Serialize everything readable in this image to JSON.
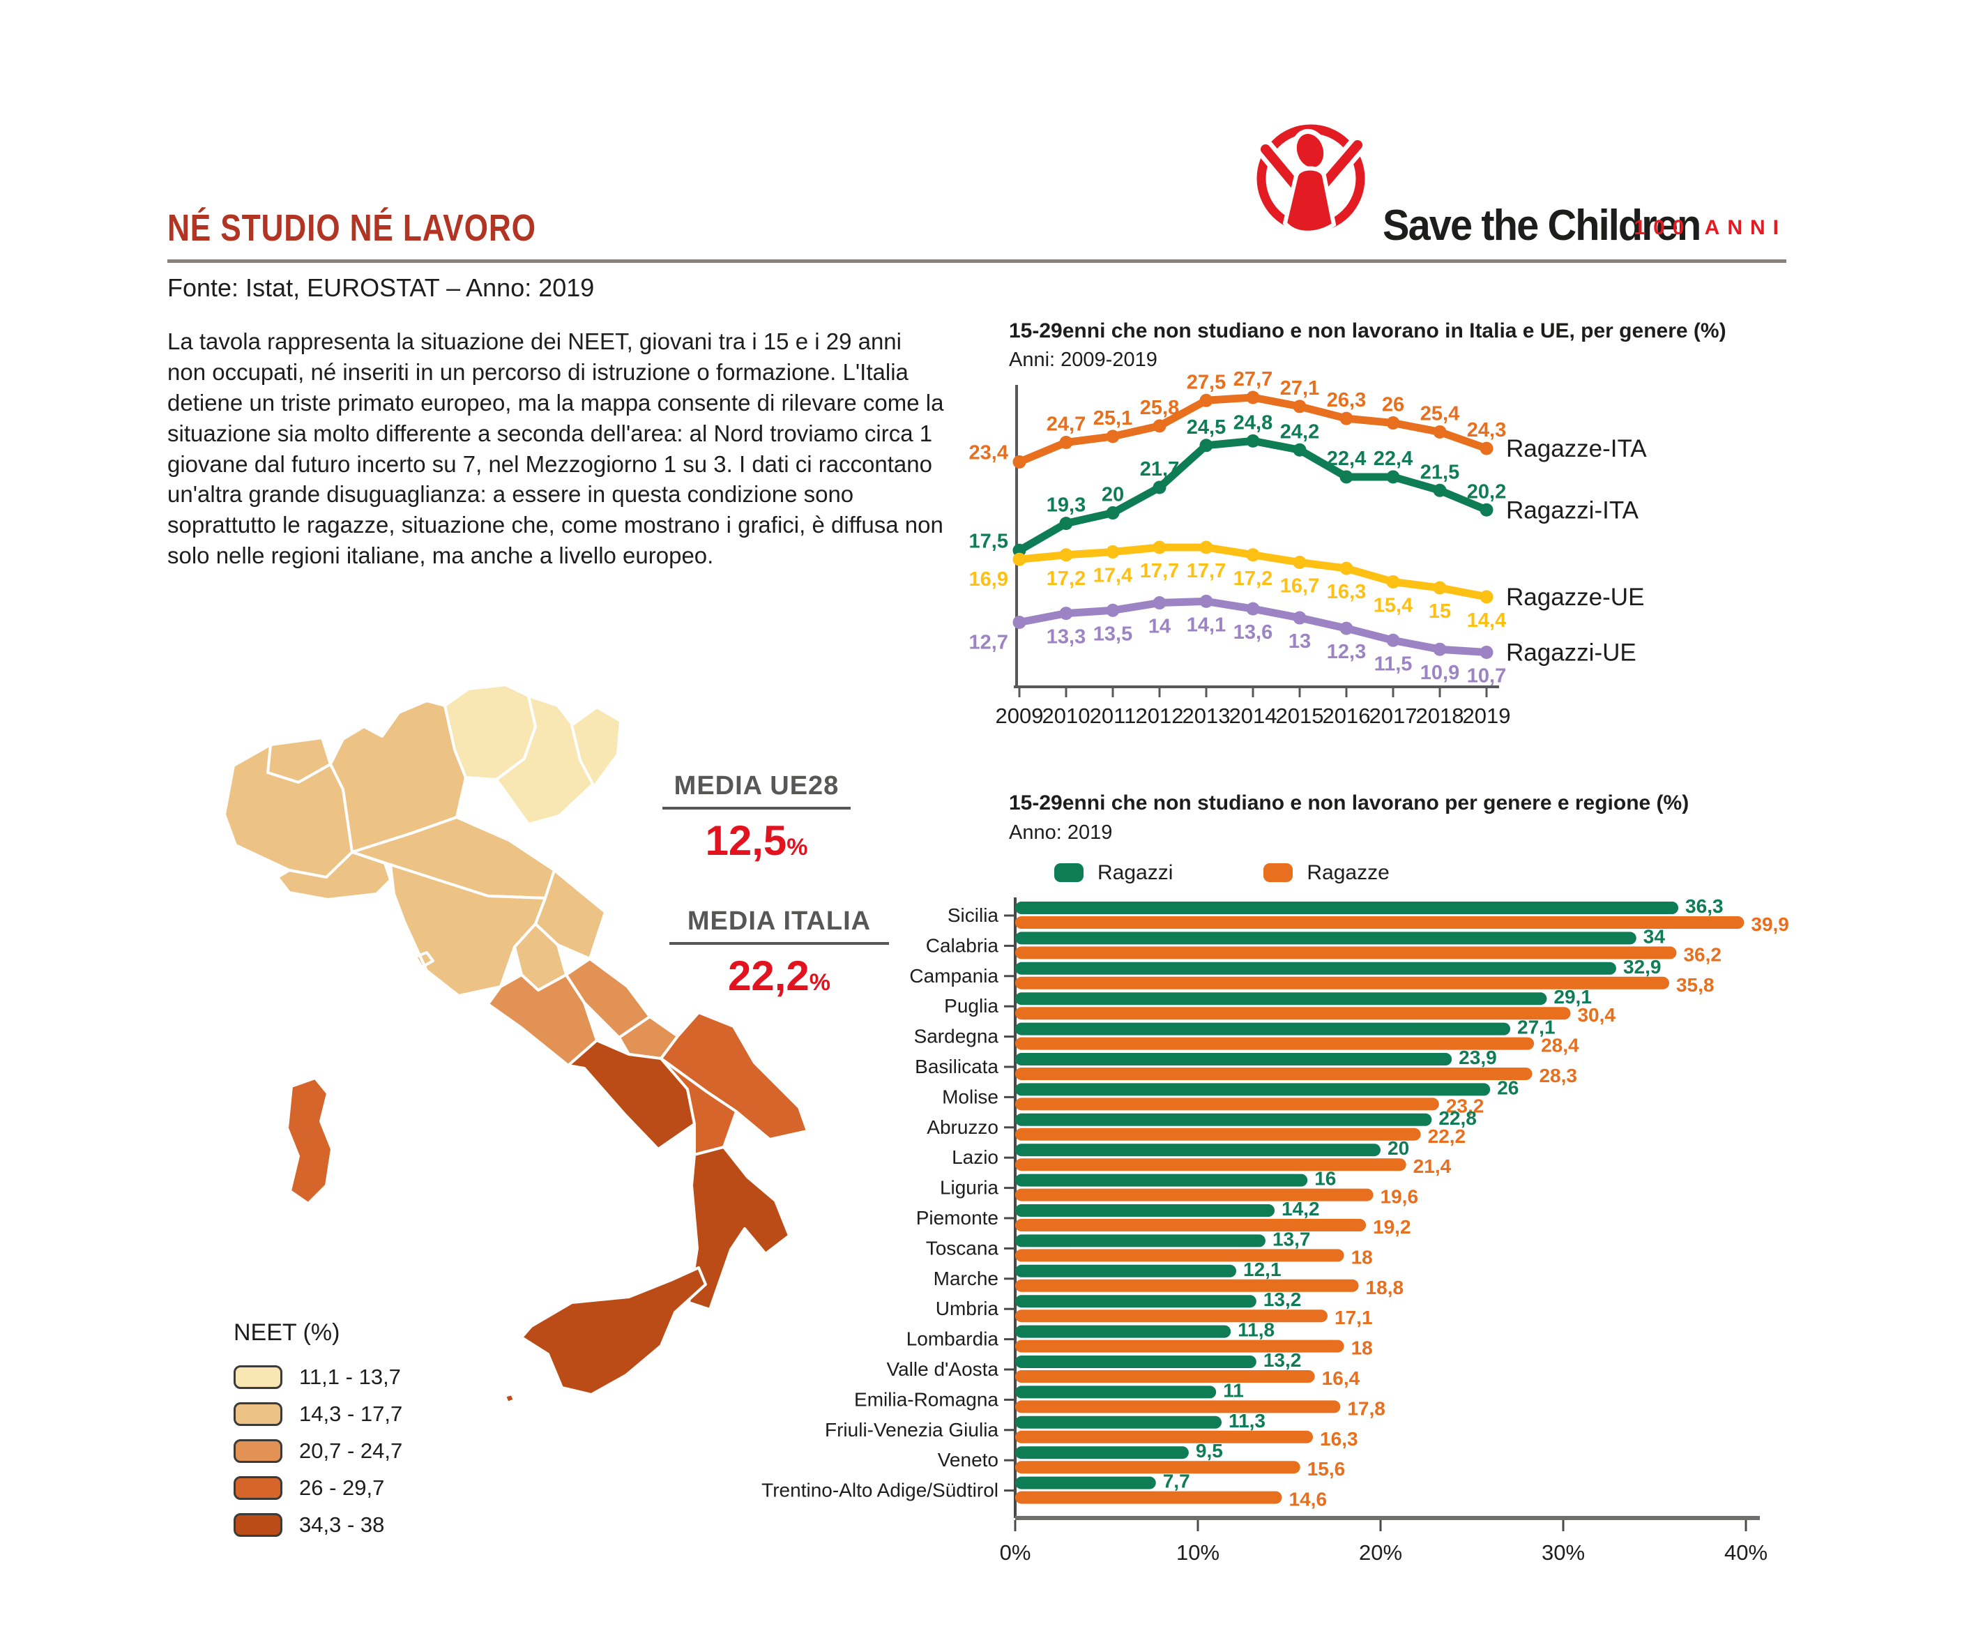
{
  "header": {
    "title": "NÉ STUDIO NÉ LAVORO",
    "source": "Fonte: Istat, EUROSTAT – Anno: 2019",
    "intro": "La tavola rappresenta la situazione dei NEET, giovani tra i 15 e i 29 anni non occupati, né inseriti in un percorso di istruzione o formazione. L'Italia detiene un triste primato europeo, ma la mappa consente di rilevare come la situazione sia molto differente a seconda dell'area: al Nord troviamo circa 1 giovane dal futuro incerto su 7, nel Mezzogiorno 1 su 3. I dati ci raccontano un'altra grande disuguaglianza: a essere in questa condizione sono soprattutto le ragazze, situazione che, come mostrano i grafici, è diffusa non solo nelle regioni italiane, ma anche a livello europeo."
  },
  "logo": {
    "brand": "Save the Children",
    "anniversary": "100 ANNI",
    "brand_color": "#E31B23"
  },
  "map_section": {
    "media_ue_label": "MEDIA UE28",
    "media_ue_value": "12,5",
    "media_italia_label": "MEDIA ITALIA",
    "media_italia_value": "22,2",
    "percent": "%",
    "legend_title": "NEET (%)",
    "legend": [
      {
        "range": "11,1 - 13,7",
        "color": "#F8E7B3"
      },
      {
        "range": "14,3 - 17,7",
        "color": "#ECC285"
      },
      {
        "range": "20,7 - 24,7",
        "color": "#E29254"
      },
      {
        "range": "26 - 29,7",
        "color": "#D5652B"
      },
      {
        "range": "34,3 - 38",
        "color": "#BB4B17"
      }
    ],
    "regions": [
      {
        "name": "Valle d'Aosta",
        "category": 1
      },
      {
        "name": "Piemonte",
        "category": 1
      },
      {
        "name": "Lombardia",
        "category": 1
      },
      {
        "name": "Trentino-Alto Adige/Südtirol",
        "category": 0
      },
      {
        "name": "Veneto",
        "category": 0
      },
      {
        "name": "Friuli-Venezia Giulia",
        "category": 0
      },
      {
        "name": "Liguria",
        "category": 1
      },
      {
        "name": "Emilia-Romagna",
        "category": 1
      },
      {
        "name": "Toscana",
        "category": 1
      },
      {
        "name": "Umbria",
        "category": 1
      },
      {
        "name": "Marche",
        "category": 1
      },
      {
        "name": "Lazio",
        "category": 2
      },
      {
        "name": "Abruzzo",
        "category": 2
      },
      {
        "name": "Molise",
        "category": 2
      },
      {
        "name": "Campania",
        "category": 4
      },
      {
        "name": "Puglia",
        "category": 3
      },
      {
        "name": "Basilicata",
        "category": 3
      },
      {
        "name": "Calabria",
        "category": 4
      },
      {
        "name": "Sicilia",
        "category": 4
      },
      {
        "name": "Sardegna",
        "category": 3
      }
    ]
  },
  "chart_data": [
    {
      "type": "line",
      "title": "15-29enni che non studiano e non lavorano in Italia e UE, per genere (%)",
      "subtitle": "Anni: 2009-2019",
      "x": [
        2009,
        2010,
        2011,
        2012,
        2013,
        2014,
        2015,
        2016,
        2017,
        2018,
        2019
      ],
      "ylim": [
        10,
        28
      ],
      "grid": false,
      "legend_position": "right",
      "series": [
        {
          "name": "Ragazze-ITA",
          "color": "#E76F1E",
          "label_side": "above",
          "values": [
            23.4,
            24.7,
            25.1,
            25.8,
            27.5,
            27.7,
            27.1,
            26.3,
            26,
            25.4,
            24.3
          ]
        },
        {
          "name": "Ragazzi-ITA",
          "color": "#0E7C54",
          "label_side": "above",
          "values": [
            17.5,
            19.3,
            20,
            21.7,
            24.5,
            24.8,
            24.2,
            22.4,
            22.4,
            21.5,
            20.2
          ]
        },
        {
          "name": "Ragazze-UE",
          "color": "#FDC013",
          "label_side": "below",
          "values": [
            16.9,
            17.2,
            17.4,
            17.7,
            17.7,
            17.2,
            16.7,
            16.3,
            15.4,
            15,
            14.4
          ]
        },
        {
          "name": "Ragazzi-UE",
          "color": "#9C84C4",
          "label_side": "below",
          "values": [
            12.7,
            13.3,
            13.5,
            14,
            14.1,
            13.6,
            13,
            12.3,
            11.5,
            10.9,
            10.7
          ]
        }
      ]
    },
    {
      "type": "bar",
      "title": "15-29enni che non studiano e non lavorano per genere e regione (%)",
      "subtitle": "Anno: 2019",
      "xlim": [
        0,
        40
      ],
      "x_ticks": [
        "0%",
        "10%",
        "20%",
        "30%",
        "40%"
      ],
      "categories": [
        "Sicilia",
        "Calabria",
        "Campania",
        "Puglia",
        "Sardegna",
        "Basilicata",
        "Molise",
        "Abruzzo",
        "Lazio",
        "Liguria",
        "Piemonte",
        "Toscana",
        "Marche",
        "Umbria",
        "Lombardia",
        "Valle d'Aosta",
        "Emilia-Romagna",
        "Friuli-Venezia Giulia",
        "Veneto",
        "Trentino-Alto Adige/Südtirol"
      ],
      "series": [
        {
          "name": "Ragazzi",
          "color": "#0E7C54",
          "values": [
            36.3,
            34,
            32.9,
            29.1,
            27.1,
            23.9,
            26,
            22.8,
            20,
            16,
            14.2,
            13.7,
            12.1,
            13.2,
            11.8,
            13.2,
            11,
            11.3,
            9.5,
            7.7
          ]
        },
        {
          "name": "Ragazze",
          "color": "#E76F1E",
          "values": [
            39.9,
            36.2,
            35.8,
            30.4,
            28.4,
            28.3,
            23.2,
            22.2,
            21.4,
            19.6,
            19.2,
            18,
            18.8,
            17.1,
            18,
            16.4,
            17.8,
            16.3,
            15.6,
            14.6
          ]
        }
      ]
    }
  ]
}
